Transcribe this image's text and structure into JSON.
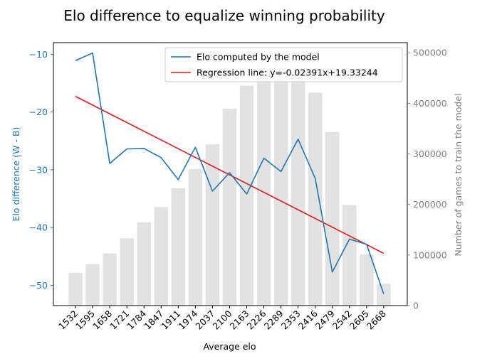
{
  "title": "Elo difference to equalize winning probability",
  "colors": {
    "line": "#1f77b4",
    "regression": "#e41a1c",
    "bars": "#e2e2e2",
    "left_axis": "#1f77b4",
    "right_axis": "#808080",
    "frame": "#000000"
  },
  "chart_data": {
    "type": "bar",
    "title": "Elo difference to equalize winning probability",
    "xlabel": "Average elo",
    "ylabel_left": "Elo difference (W - B)",
    "ylabel_right": "Number of games to train the model",
    "categories": [
      "1532",
      "1595",
      "1658",
      "1721",
      "1784",
      "1847",
      "1911",
      "1974",
      "2037",
      "2100",
      "2163",
      "2226",
      "2289",
      "2353",
      "2416",
      "2479",
      "2542",
      "2605",
      "2668"
    ],
    "x": [
      1532,
      1595,
      1658,
      1721,
      1784,
      1847,
      1911,
      1974,
      2037,
      2100,
      2163,
      2226,
      2289,
      2353,
      2416,
      2479,
      2542,
      2605,
      2668
    ],
    "ylim_left": [
      -53.5,
      -8.0
    ],
    "ylim_right": [
      0,
      520000
    ],
    "yticks_left": [
      -10,
      -20,
      -30,
      -40,
      -50
    ],
    "yticks_right": [
      0,
      100000,
      200000,
      300000,
      400000,
      500000
    ],
    "yticklabels_right": [
      "0",
      "100000",
      "200000",
      "300000",
      "400000",
      "500000"
    ],
    "grid": false,
    "legend_position": "top-right",
    "series": [
      {
        "name": "Elo computed by the model",
        "kind": "line",
        "axis": "left",
        "values": [
          -11.1,
          -9.8,
          -28.9,
          -26.4,
          -26.3,
          -27.9,
          -31.7,
          -26.1,
          -33.7,
          -30.5,
          -34.2,
          -28.0,
          -30.3,
          -24.7,
          -31.5,
          -47.7,
          -42.0,
          -42.9,
          -51.5
        ]
      },
      {
        "name": "Regression line: y=-0.02391x+19.33244",
        "kind": "line",
        "axis": "left",
        "slope": -0.02391,
        "intercept": 19.33244
      },
      {
        "name": "Number of games",
        "kind": "bar",
        "axis": "right",
        "values": [
          65000,
          82000,
          103000,
          133000,
          165000,
          195000,
          232000,
          270000,
          319000,
          389000,
          435000,
          480000,
          497000,
          470000,
          421000,
          343000,
          199000,
          101000,
          43000
        ]
      }
    ]
  }
}
